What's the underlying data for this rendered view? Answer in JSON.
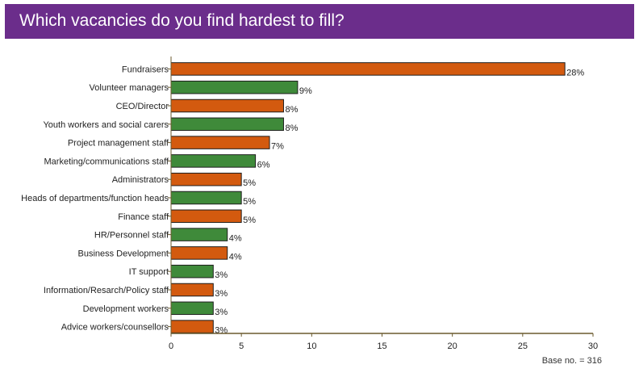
{
  "header": {
    "title": "Which vacancies do you find hardest to fill?"
  },
  "note": "Base no. = 316",
  "colors": {
    "header_bg": "#6b2d8b",
    "orange": "#d35a0f",
    "green": "#3f8a3a",
    "axis": "#6b5a2e"
  },
  "chart_data": {
    "type": "bar",
    "orientation": "horizontal",
    "title": "Which vacancies do you find hardest to fill?",
    "xlabel": "",
    "ylabel": "",
    "xlim": [
      0,
      30
    ],
    "xticks": [
      0,
      5,
      10,
      15,
      20,
      25,
      30
    ],
    "grid": false,
    "categories": [
      "Fundraisers",
      "Volunteer managers",
      "CEO/Director",
      "Youth workers and social carers",
      "Project management staff",
      "Marketing/communications staff",
      "Administrators",
      "Heads of departments/function heads",
      "Finance staff",
      "HR/Personnel staff",
      "Business Development",
      "IT support",
      "Information/Resarch/Policy staff",
      "Development workers",
      "Advice workers/counsellors"
    ],
    "values": [
      28,
      9,
      8,
      8,
      7,
      6,
      5,
      5,
      5,
      4,
      4,
      3,
      3,
      3,
      3
    ],
    "value_labels": [
      "28%",
      "9%",
      "8%",
      "8%",
      "7%",
      "6%",
      "5%",
      "5%",
      "5%",
      "4%",
      "4%",
      "3%",
      "3%",
      "3%",
      "3%"
    ],
    "bar_colors": [
      "orange",
      "green",
      "orange",
      "green",
      "orange",
      "green",
      "orange",
      "green",
      "orange",
      "green",
      "orange",
      "green",
      "orange",
      "green",
      "orange"
    ]
  }
}
